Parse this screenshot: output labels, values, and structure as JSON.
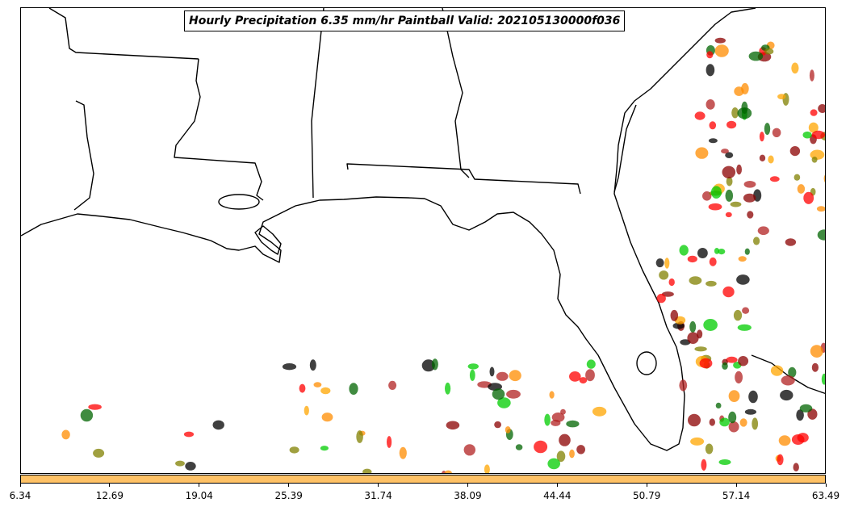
{
  "title": "Hourly Precipitation 6.35 mm/hr Paintball Valid: 202105130000f036",
  "colorbar": {
    "color": "#ffc266",
    "ticks": [
      "6.34",
      "12.69",
      "19.04",
      "25.39",
      "31.74",
      "38.09",
      "44.44",
      "50.79",
      "57.14",
      "63.49"
    ]
  },
  "member_colors": [
    "#ff0000",
    "#ff8c00",
    "#00cc00",
    "#8b0000",
    "#808000",
    "#006400",
    "#000000",
    "#ffa500",
    "#b22222"
  ]
}
